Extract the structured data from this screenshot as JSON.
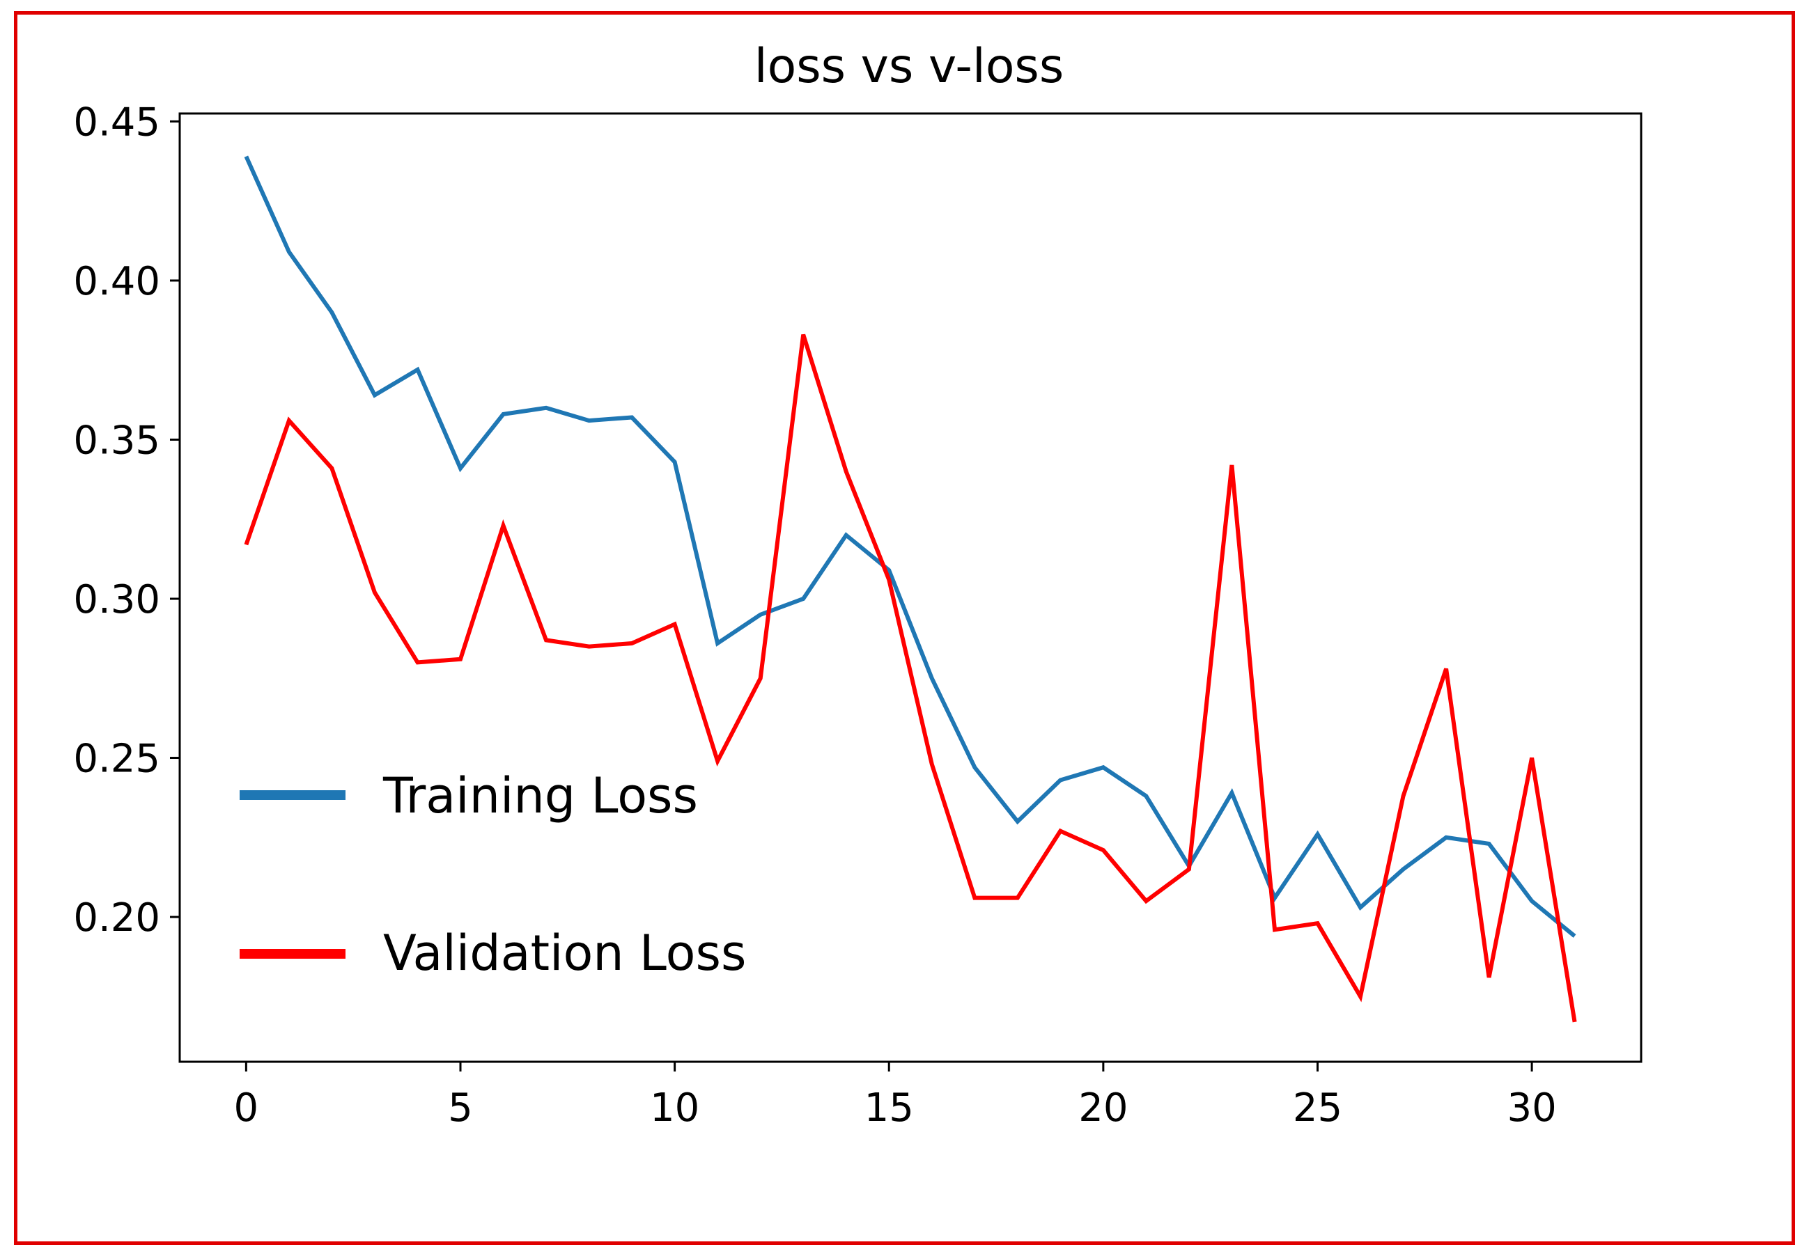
{
  "chart_data": {
    "type": "line",
    "title": "loss vs v-loss",
    "xlabel": "",
    "ylabel": "",
    "xlim": [
      -1.55,
      32.55
    ],
    "ylim": [
      0.1545,
      0.4525
    ],
    "xticks": [
      0,
      5,
      10,
      15,
      20,
      25,
      30
    ],
    "xtick_labels": [
      "0",
      "5",
      "10",
      "15",
      "20",
      "25",
      "30"
    ],
    "yticks": [
      0.2,
      0.25,
      0.3,
      0.35,
      0.4,
      0.45
    ],
    "ytick_labels": [
      "0.20",
      "0.25",
      "0.30",
      "0.35",
      "0.40",
      "0.45"
    ],
    "grid": false,
    "legend_position": "lower-left",
    "x": [
      0,
      1,
      2,
      3,
      4,
      5,
      6,
      7,
      8,
      9,
      10,
      11,
      12,
      13,
      14,
      15,
      16,
      17,
      18,
      19,
      20,
      21,
      22,
      23,
      24,
      25,
      26,
      27,
      28,
      29,
      30,
      31
    ],
    "series": [
      {
        "name": "Training Loss",
        "color": "#1f77b4",
        "values": [
          0.439,
          0.409,
          0.39,
          0.364,
          0.372,
          0.341,
          0.358,
          0.36,
          0.356,
          0.357,
          0.343,
          0.286,
          0.295,
          0.3,
          0.32,
          0.309,
          0.275,
          0.247,
          0.23,
          0.243,
          0.247,
          0.238,
          0.216,
          0.239,
          0.206,
          0.226,
          0.203,
          0.215,
          0.225,
          0.223,
          0.205,
          0.194
        ]
      },
      {
        "name": "Validation Loss",
        "color": "#ff0000",
        "values": [
          0.317,
          0.356,
          0.341,
          0.302,
          0.28,
          0.281,
          0.323,
          0.287,
          0.285,
          0.286,
          0.292,
          0.249,
          0.275,
          0.383,
          0.34,
          0.306,
          0.248,
          0.206,
          0.206,
          0.227,
          0.221,
          0.205,
          0.215,
          0.342,
          0.196,
          0.198,
          0.175,
          0.238,
          0.278,
          0.181,
          0.25,
          0.167
        ]
      }
    ]
  }
}
